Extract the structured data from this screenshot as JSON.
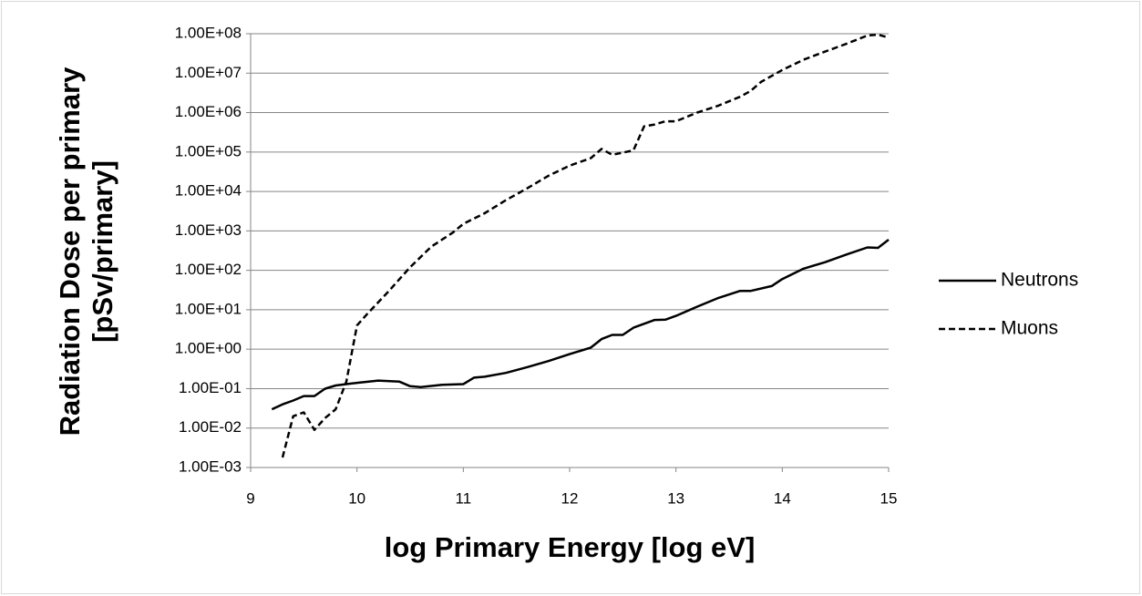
{
  "chart_data": {
    "type": "line",
    "xlabel": "log Primary Energy [log eV]",
    "ylabel": [
      "Radiation Dose per primary",
      "[pSv/primary]"
    ],
    "xlim": [
      9,
      15
    ],
    "xticks": [
      9,
      10,
      11,
      12,
      13,
      14,
      15
    ],
    "ylim": [
      0.001,
      100000000
    ],
    "yscale": "log",
    "grid": true,
    "legend": "right",
    "yticks": [
      {
        "value": 0.001,
        "label": "1.00E-03"
      },
      {
        "value": 0.01,
        "label": "1.00E-02"
      },
      {
        "value": 0.1,
        "label": "1.00E-01"
      },
      {
        "value": 1,
        "label": "1.00E+00"
      },
      {
        "value": 10,
        "label": "1.00E+01"
      },
      {
        "value": 100,
        "label": "1.00E+02"
      },
      {
        "value": 1000,
        "label": "1.00E+03"
      },
      {
        "value": 10000,
        "label": "1.00E+04"
      },
      {
        "value": 100000,
        "label": "1.00E+05"
      },
      {
        "value": 1000000,
        "label": "1.00E+06"
      },
      {
        "value": 10000000,
        "label": "1.00E+07"
      },
      {
        "value": 100000000,
        "label": "1.00E+08"
      }
    ],
    "series": [
      {
        "name": "Neutrons",
        "color": "#000000",
        "linestyle": "solid",
        "x": [
          9.2,
          9.3,
          9.4,
          9.5,
          9.6,
          9.7,
          9.8,
          9.9,
          10.0,
          10.2,
          10.4,
          10.5,
          10.6,
          10.8,
          11.0,
          11.1,
          11.2,
          11.4,
          11.6,
          11.8,
          12.0,
          12.2,
          12.3,
          12.4,
          12.5,
          12.6,
          12.8,
          12.9,
          13.0,
          13.2,
          13.4,
          13.6,
          13.7,
          13.9,
          14.0,
          14.2,
          14.4,
          14.6,
          14.8,
          14.9,
          15.0
        ],
        "values": [
          0.03,
          0.04,
          0.05,
          0.065,
          0.065,
          0.1,
          0.12,
          0.13,
          0.14,
          0.16,
          0.15,
          0.115,
          0.11,
          0.125,
          0.13,
          0.19,
          0.2,
          0.25,
          0.35,
          0.5,
          0.75,
          1.1,
          1.8,
          2.3,
          2.3,
          3.5,
          5.5,
          5.6,
          7,
          12,
          20,
          30,
          30,
          40,
          60,
          110,
          160,
          250,
          380,
          370,
          600
        ]
      },
      {
        "name": "Muons",
        "color": "#000000",
        "linestyle": "dashed",
        "x": [
          9.3,
          9.4,
          9.5,
          9.6,
          9.7,
          9.8,
          9.9,
          10.0,
          10.1,
          10.3,
          10.5,
          10.7,
          10.9,
          11.0,
          11.2,
          11.4,
          11.6,
          11.8,
          12.0,
          12.2,
          12.3,
          12.4,
          12.6,
          12.7,
          12.8,
          12.9,
          13.0,
          13.2,
          13.4,
          13.6,
          13.7,
          13.8,
          14.0,
          14.2,
          14.4,
          14.6,
          14.8,
          14.9,
          15.0
        ],
        "values": [
          0.0018,
          0.02,
          0.025,
          0.009,
          0.018,
          0.03,
          0.15,
          4,
          8,
          30,
          120,
          400,
          900,
          1500,
          2800,
          6000,
          12000,
          25000,
          45000,
          70000,
          120000,
          85000,
          110000,
          450000,
          500000,
          600000,
          600000,
          1000000,
          1500000,
          2500000,
          3500000,
          6000000,
          12000000,
          22000000,
          35000000,
          55000000,
          90000000,
          95000000,
          80000000
        ]
      }
    ]
  }
}
